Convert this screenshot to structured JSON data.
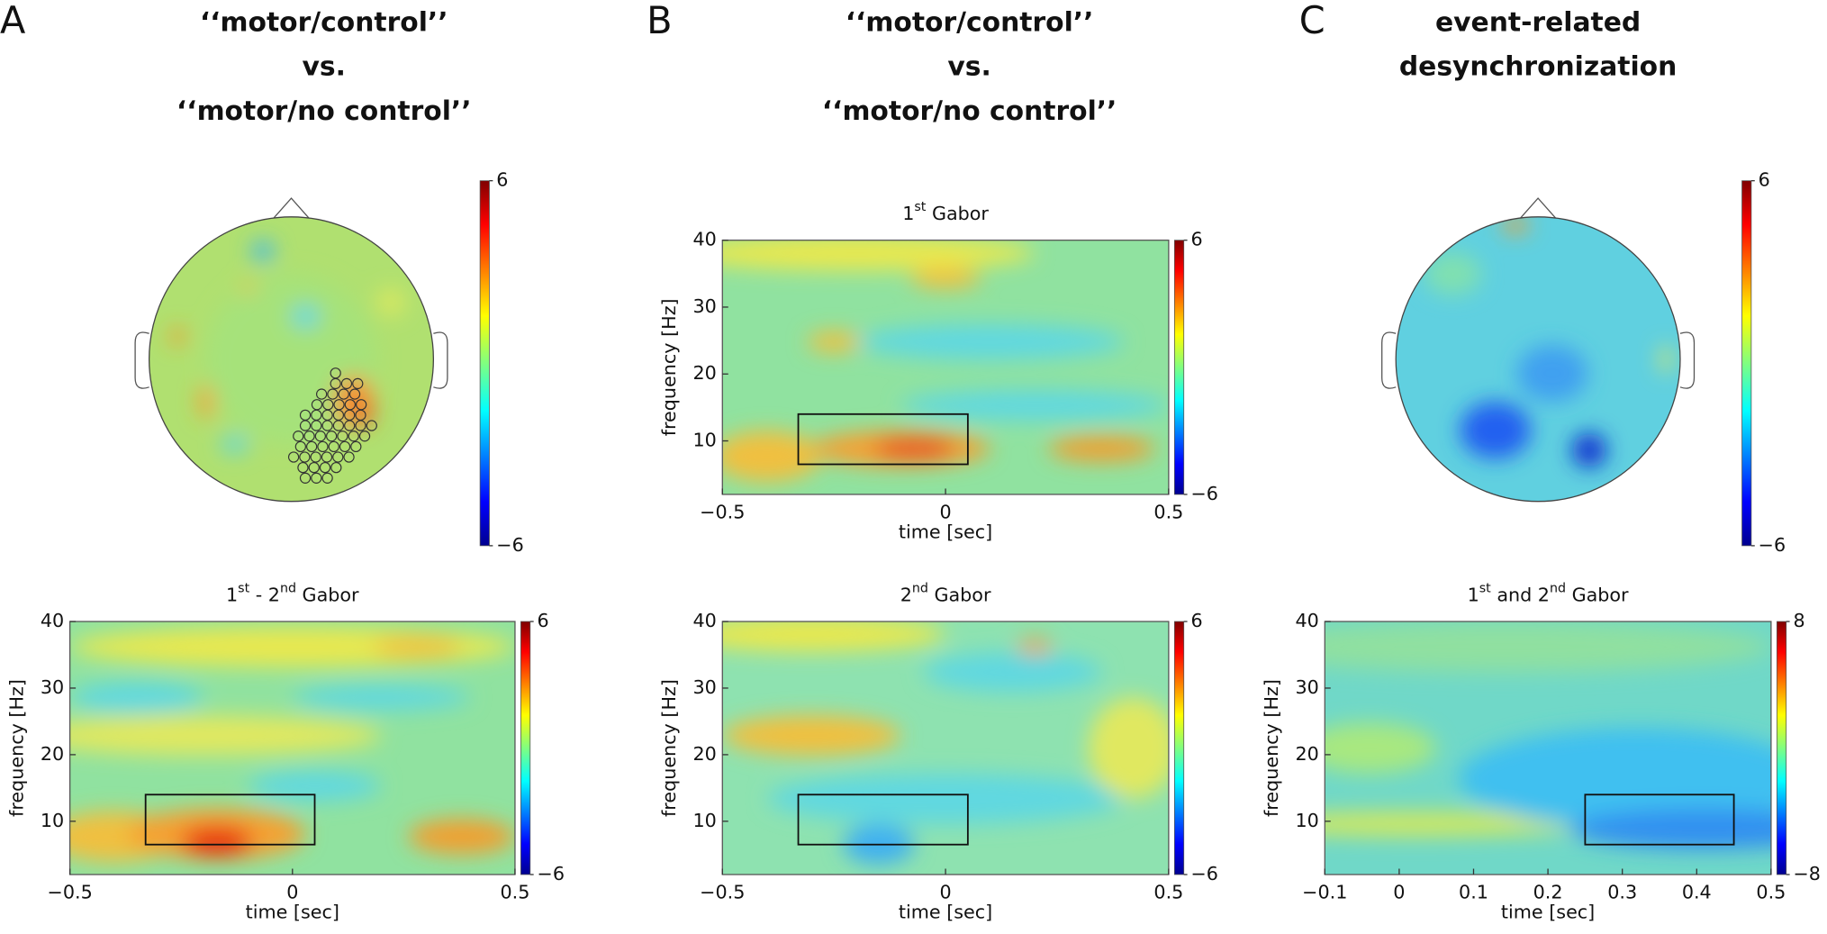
{
  "panels": [
    {
      "label": "A",
      "heading": [
        "‘‘motor/control’’",
        "vs.",
        "‘‘motor/no control’’"
      ]
    },
    {
      "label": "B",
      "heading": [
        "‘‘motor/control’’",
        "vs.",
        "‘‘motor/no control’’"
      ]
    },
    {
      "label": "C",
      "heading": [
        "event-related",
        "desynchronization"
      ]
    }
  ],
  "chart_data": [
    {
      "type": "topoplot",
      "colormap": "jet",
      "clim": [
        -6,
        6
      ],
      "cticks": [
        6,
        {
          "value": -6,
          "label": "−6"
        }
      ]
    },
    {
      "type": "heatmap",
      "colormap": "jet",
      "title": [
        "1",
        "st",
        " - 2",
        "nd",
        " Gabor"
      ],
      "xlabel": "time [sec]",
      "ylabel": "frequency [Hz]",
      "xlim": [
        -0.5,
        0.5
      ],
      "xticks": [
        {
          "value": -0.5,
          "label": "−0.5"
        },
        0,
        0.5
      ],
      "ylim": [
        2,
        40
      ],
      "yticks": [
        10,
        20,
        30,
        40
      ],
      "clim": [
        -6,
        6
      ],
      "cticks": [
        6,
        {
          "value": -6,
          "label": "−6"
        }
      ],
      "window": {
        "x": [
          -0.33,
          0.05
        ],
        "y": [
          6.5,
          14
        ]
      }
    },
    {
      "type": "heatmap",
      "colormap": "jet",
      "title": [
        "1",
        "st",
        " Gabor"
      ],
      "xlabel": "time [sec]",
      "ylabel": "frequency [Hz]",
      "xlim": [
        -0.5,
        0.5
      ],
      "xticks": [
        {
          "value": -0.5,
          "label": "−0.5"
        },
        0,
        0.5
      ],
      "ylim": [
        2,
        40
      ],
      "yticks": [
        10,
        20,
        30,
        40
      ],
      "clim": [
        -6,
        6
      ],
      "cticks": [
        6,
        {
          "value": -6,
          "label": "−6"
        }
      ],
      "window": {
        "x": [
          -0.33,
          0.05
        ],
        "y": [
          6.5,
          14
        ]
      }
    },
    {
      "type": "heatmap",
      "colormap": "jet",
      "title": [
        "2",
        "nd",
        " Gabor"
      ],
      "xlabel": "time [sec]",
      "ylabel": "frequency [Hz]",
      "xlim": [
        -0.5,
        0.5
      ],
      "xticks": [
        {
          "value": -0.5,
          "label": "−0.5"
        },
        0,
        0.5
      ],
      "ylim": [
        2,
        40
      ],
      "yticks": [
        10,
        20,
        30,
        40
      ],
      "clim": [
        -6,
        6
      ],
      "cticks": [
        6,
        {
          "value": -6,
          "label": "−6"
        }
      ],
      "window": {
        "x": [
          -0.33,
          0.05
        ],
        "y": [
          6.5,
          14
        ]
      }
    },
    {
      "type": "topoplot",
      "colormap": "jet",
      "clim": [
        -6,
        6
      ],
      "cticks": [
        6,
        {
          "value": -6,
          "label": "−6"
        }
      ]
    },
    {
      "type": "heatmap",
      "colormap": "jet",
      "title": [
        "1",
        "st",
        " and 2",
        "nd",
        " Gabor"
      ],
      "xlabel": "time [sec]",
      "ylabel": "frequency [Hz]",
      "xlim": [
        -0.1,
        0.5
      ],
      "xticks": [
        {
          "value": -0.1,
          "label": "−0.1"
        },
        0,
        0.1,
        0.2,
        0.3,
        0.4,
        0.5
      ],
      "ylim": [
        2,
        40
      ],
      "yticks": [
        10,
        20,
        30,
        40
      ],
      "clim": [
        -8,
        8
      ],
      "cticks": [
        8,
        {
          "value": -8,
          "label": "−8"
        }
      ],
      "window": {
        "x": [
          0.25,
          0.45
        ],
        "y": [
          6.5,
          14
        ]
      }
    }
  ]
}
